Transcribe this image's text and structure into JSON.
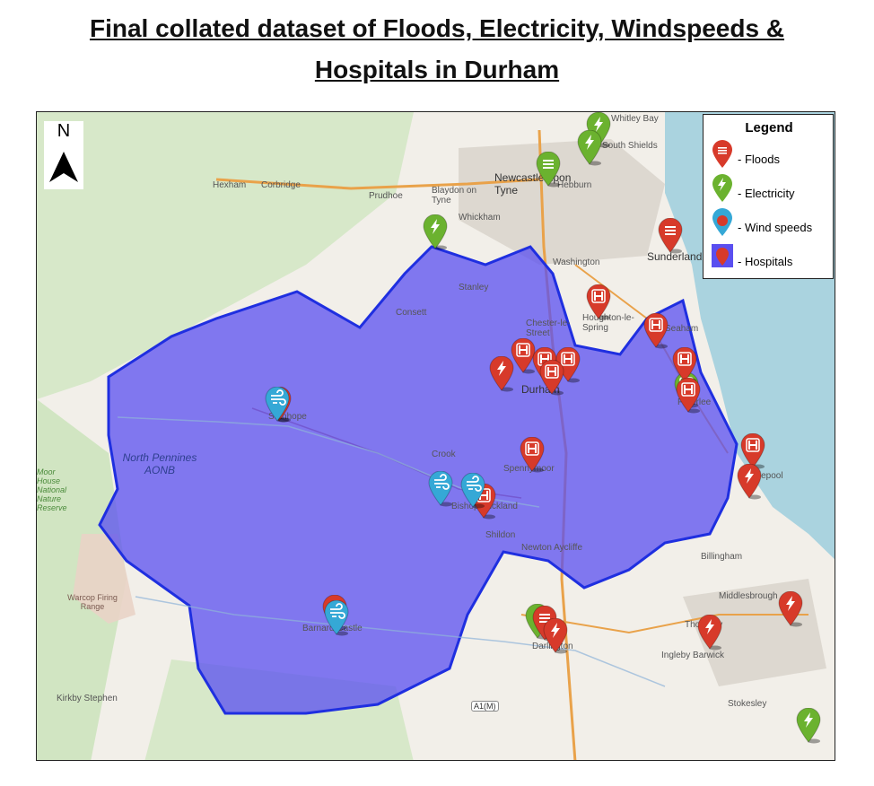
{
  "title_line1": "Final collated dataset of Floods, Electricity, Windspeeds &",
  "title_line2": "Hospitals in Durham",
  "north_label": "N",
  "legend": {
    "title": "Legend",
    "items": [
      {
        "label": "- Floods",
        "color": "#d73a2a"
      },
      {
        "label": "- Electricity",
        "color": "#6bb22f"
      },
      {
        "label": "- Wind speeds",
        "color": "#35a8d6"
      },
      {
        "label": "- Hospitals",
        "color": "#5a4ff0"
      }
    ]
  },
  "places": [
    "Hexham",
    "Corbridge",
    "Prudhoe",
    "Blaydon on Tyne",
    "Newcastle upon Tyne",
    "Hebburn",
    "Whickham",
    "Washington",
    "Sunderland",
    "Stanley",
    "Consett",
    "Chester-le-Street",
    "Houghton-le-Spring",
    "Seaham",
    "Durham",
    "Peterlee",
    "Hartlepool",
    "Crook",
    "Spennymoor",
    "Bishop Auckland",
    "Shildon",
    "Newton Aycliffe",
    "Stanhope",
    "North Pennines AONB",
    "Warcop Firing Range",
    "Barnard Castle",
    "Darlington",
    "Billingham",
    "Middlesbrough",
    "Thornaby",
    "Ingleby Barwick",
    "Stokesley",
    "Kirkby Stephen",
    "A1(M)",
    "Moor House National Nature Reserve",
    "South Shields",
    "Whitley Bay"
  ],
  "colors": {
    "flood": "#d73a2a",
    "electricity": "#6bb22f",
    "wind": "#35a8d6",
    "county_fill": "#5a4ff0",
    "county_border": "#1f2fe0",
    "sea": "#aad3df"
  },
  "markers": {
    "hospital_icon": "hospital-icon",
    "flood_icon": "flood-lines-icon",
    "electricity_icon": "lightning-icon",
    "wind_icon": "wind-icon"
  }
}
